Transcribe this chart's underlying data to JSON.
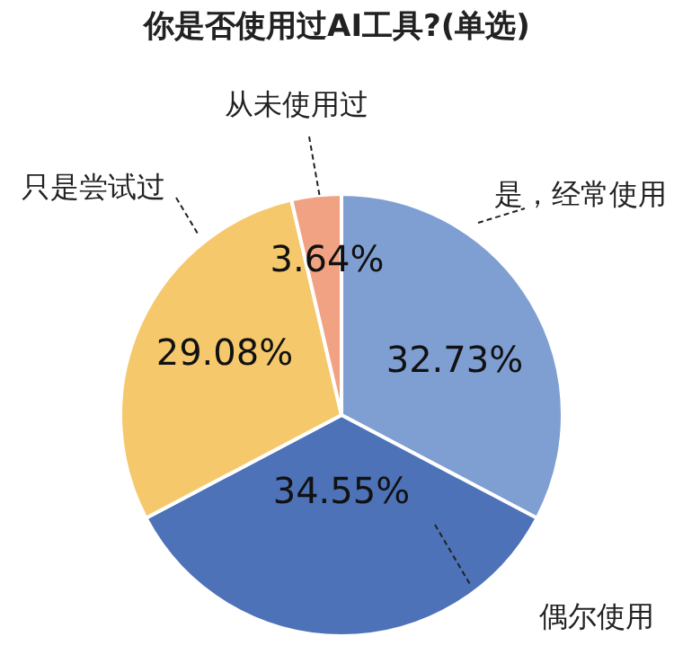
{
  "chart_data": {
    "type": "pie",
    "title": "你是否使用过AI工具?(单选)",
    "categories": [
      "是，经常使用",
      "偶尔使用",
      "只是尝试过",
      "从未使用过"
    ],
    "values": [
      32.73,
      34.55,
      29.08,
      3.64
    ],
    "value_labels": [
      "32.73%",
      "34.55%",
      "29.08%",
      "3.64%"
    ],
    "colors": [
      "#7f9fd3",
      "#4d72b8",
      "#f5c86c",
      "#f0a282"
    ]
  }
}
